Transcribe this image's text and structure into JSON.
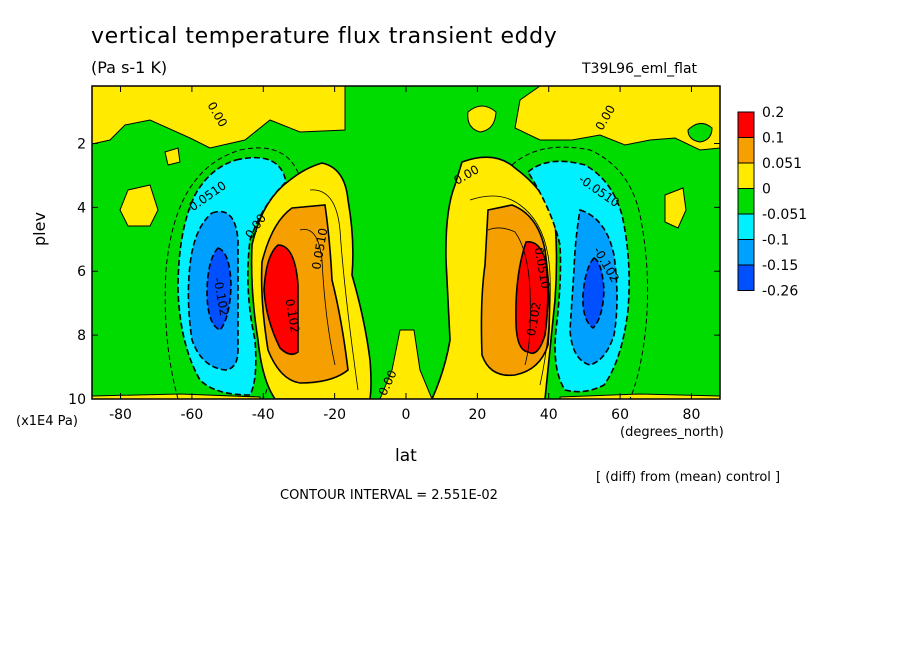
{
  "header": {
    "title": "vertical temperature flux transient eddy",
    "units": "(Pa s-1 K)",
    "run_id": "T39L96_eml_flat"
  },
  "footer": {
    "diff_note": "[ (diff) from (mean) control ]",
    "contour_interval": "CONTOUR INTERVAL = 2.551E-02"
  },
  "chart_data": {
    "type": "heatmap",
    "title": "vertical temperature flux transient eddy",
    "subtitle": "(Pa s-1 K)",
    "xlabel": "lat",
    "xunit": "(degrees_north)",
    "ylabel": "plev",
    "yunit": "(x1E4 Pa)",
    "xlim": [
      -88,
      88
    ],
    "ylim": [
      10,
      0.2
    ],
    "xticks": [
      -80,
      -60,
      -40,
      -20,
      0,
      20,
      40,
      60,
      80
    ],
    "yticks": [
      2,
      4,
      6,
      8,
      10
    ],
    "colorbar": {
      "labels": [
        "0.2",
        "0.1",
        "0.051",
        "0",
        "-0.051",
        "-0.1",
        "-0.15",
        "-0.26"
      ],
      "colors": [
        "#ff0000",
        "#f5a000",
        "#ffea00",
        "#00dc00",
        "#00f0ff",
        "#00a0ff",
        "#0050ff"
      ]
    },
    "contour_labels": [
      {
        "text": "0.00",
        "lat": -53,
        "plev": 1.1,
        "angle": 60
      },
      {
        "text": "-0.0510",
        "lat": -56,
        "plev": 3.7,
        "angle": -35
      },
      {
        "text": "-0.102",
        "lat": -52,
        "plev": 6.8,
        "angle": 80
      },
      {
        "text": "0.00",
        "lat": -42,
        "plev": 4.6,
        "angle": -55
      },
      {
        "text": "0.102",
        "lat": -32,
        "plev": 7.4,
        "angle": 80
      },
      {
        "text": "0.0510",
        "lat": -24,
        "plev": 5.3,
        "angle": -80
      },
      {
        "text": "0.00",
        "lat": -5,
        "plev": 9.5,
        "angle": -65
      },
      {
        "text": "0.00",
        "lat": 17,
        "plev": 3.0,
        "angle": -30
      },
      {
        "text": "0.0510",
        "lat": 38,
        "plev": 5.9,
        "angle": 80
      },
      {
        "text": "0.102",
        "lat": 36,
        "plev": 7.5,
        "angle": -80
      },
      {
        "text": "-0.0510",
        "lat": 54,
        "plev": 3.5,
        "angle": 35
      },
      {
        "text": "-0.102",
        "lat": 56,
        "plev": 5.8,
        "angle": 60
      },
      {
        "text": "0.00",
        "lat": 56,
        "plev": 1.2,
        "angle": -60
      }
    ]
  }
}
